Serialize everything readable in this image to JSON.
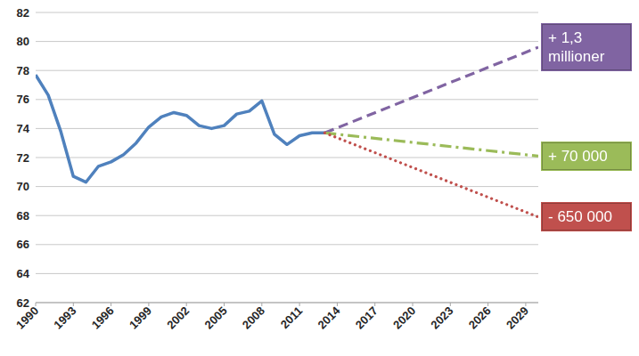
{
  "chart_data": {
    "type": "line",
    "xlim": [
      1990,
      2030
    ],
    "xticks": [
      1990,
      1993,
      1996,
      1999,
      2002,
      2005,
      2008,
      2011,
      2014,
      2017,
      2020,
      2023,
      2026,
      2029
    ],
    "ylim": [
      62,
      82
    ],
    "yticks": [
      62,
      64,
      66,
      68,
      70,
      72,
      74,
      76,
      78,
      80,
      82
    ],
    "grid": true,
    "series": [
      {
        "color": "#4f81bd",
        "line_style": "solid",
        "x": [
          1990,
          1991,
          1992,
          1993,
          1994,
          1995,
          1996,
          1997,
          1998,
          1999,
          2000,
          2001,
          2002,
          2003,
          2004,
          2005,
          2006,
          2007,
          2008,
          2009,
          2010,
          2011,
          2012,
          2013
        ],
        "values": [
          77.7,
          76.3,
          73.8,
          70.7,
          70.3,
          71.4,
          71.7,
          72.2,
          73.0,
          74.1,
          74.8,
          75.1,
          74.9,
          74.2,
          74.0,
          74.2,
          75.0,
          75.2,
          75.9,
          73.6,
          72.9,
          73.5,
          73.7,
          73.7
        ]
      },
      {
        "name": "+ 1,3 millioner",
        "color": "#8064a2",
        "line_style": "dashed",
        "x": [
          2013,
          2030
        ],
        "values": [
          73.7,
          79.6
        ]
      },
      {
        "name": "+ 70 000",
        "color": "#9bbb59",
        "line_style": "dashdot",
        "x": [
          2013,
          2030
        ],
        "values": [
          73.7,
          72.1
        ]
      },
      {
        "name": "- 650 000",
        "color": "#c0504d",
        "line_style": "dotted",
        "x": [
          2013,
          2030
        ],
        "values": [
          73.7,
          67.9
        ]
      }
    ]
  }
}
